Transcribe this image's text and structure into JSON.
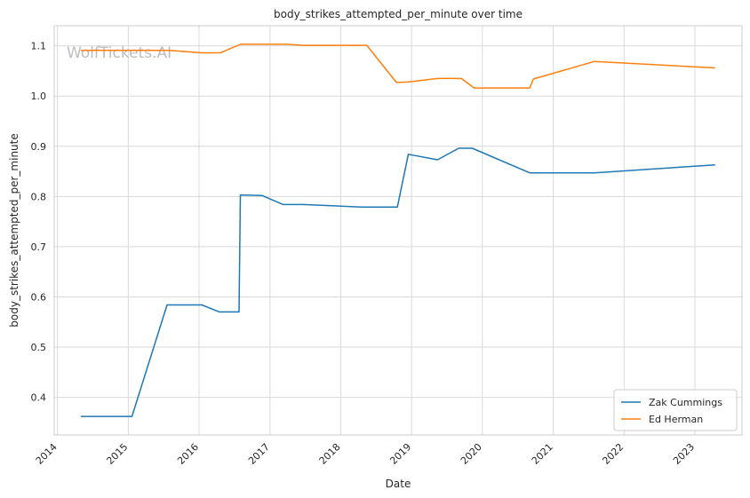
{
  "chart_data": {
    "type": "line",
    "title": "body_strikes_attempted_per_minute over time",
    "xlabel": "Date",
    "ylabel": "body_strikes_attempted_per_minute",
    "watermark": "WolfTickets.AI",
    "x_ticks": [
      "2014",
      "2015",
      "2016",
      "2017",
      "2018",
      "2019",
      "2020",
      "2021",
      "2022",
      "2023"
    ],
    "y_ticks": [
      "0.4",
      "0.5",
      "0.6",
      "0.7",
      "0.8",
      "0.9",
      "1.0",
      "1.1"
    ],
    "xlim": [
      "2013-12-15",
      "2023-09-01"
    ],
    "ylim": [
      0.325,
      1.14
    ],
    "grid": true,
    "legend_position": "lower-right",
    "series": [
      {
        "name": "Zak Cummings",
        "color": "#1f77b4",
        "points": [
          [
            "2014-05-01",
            0.362
          ],
          [
            "2015-01-20",
            0.362
          ],
          [
            "2015-07-20",
            0.584
          ],
          [
            "2016-01-15",
            0.584
          ],
          [
            "2016-04-15",
            0.57
          ],
          [
            "2016-07-25",
            0.57
          ],
          [
            "2016-08-01",
            0.803
          ],
          [
            "2016-11-20",
            0.802
          ],
          [
            "2017-03-10",
            0.784
          ],
          [
            "2017-06-20",
            0.784
          ],
          [
            "2018-04-20",
            0.779
          ],
          [
            "2018-10-20",
            0.779
          ],
          [
            "2018-12-15",
            0.884
          ],
          [
            "2019-05-15",
            0.873
          ],
          [
            "2019-09-01",
            0.896
          ],
          [
            "2019-11-10",
            0.896
          ],
          [
            "2020-09-01",
            0.847
          ],
          [
            "2021-08-01",
            0.847
          ],
          [
            "2023-04-15",
            0.863
          ]
        ]
      },
      {
        "name": "Ed Herman",
        "color": "#ff7f0e",
        "points": [
          [
            "2014-05-01",
            1.091
          ],
          [
            "2015-03-15",
            1.091
          ],
          [
            "2015-08-01",
            1.091
          ],
          [
            "2016-01-15",
            1.086
          ],
          [
            "2016-04-20",
            1.086
          ],
          [
            "2016-08-01",
            1.103
          ],
          [
            "2017-04-01",
            1.103
          ],
          [
            "2017-06-20",
            1.101
          ],
          [
            "2018-05-15",
            1.101
          ],
          [
            "2018-10-15",
            1.027
          ],
          [
            "2018-12-15",
            1.028
          ],
          [
            "2019-05-15",
            1.035
          ],
          [
            "2019-09-15",
            1.035
          ],
          [
            "2019-11-20",
            1.016
          ],
          [
            "2020-09-01",
            1.016
          ],
          [
            "2020-09-20",
            1.034
          ],
          [
            "2021-08-01",
            1.069
          ],
          [
            "2023-04-15",
            1.056
          ]
        ]
      }
    ]
  }
}
